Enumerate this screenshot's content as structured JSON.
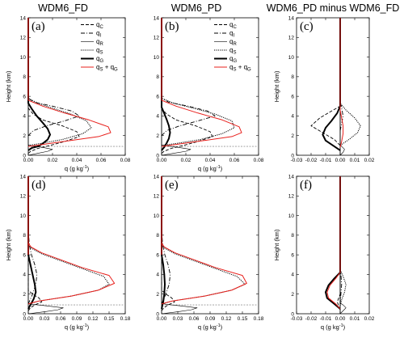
{
  "column_titles": [
    "WDM6_FD",
    "WDM6_PD",
    "WDM6_PD minus WDM6_FD"
  ],
  "legend": [
    {
      "label": "q",
      "sub": "C",
      "color": "#000000",
      "dash": "4,2",
      "width": 0.9
    },
    {
      "label": "q",
      "sub": "I",
      "color": "#000000",
      "dash": "5,2,1,2",
      "width": 0.9
    },
    {
      "label": "q",
      "sub": "R",
      "color": "#000000",
      "dash": "",
      "width": 0.6
    },
    {
      "label": "q",
      "sub": "S",
      "color": "#000000",
      "dash": "1.2,1.2",
      "width": 1.0
    },
    {
      "label": "q",
      "sub": "G",
      "color": "#000000",
      "dash": "",
      "width": 2.0
    },
    {
      "label": "q",
      "sub": "S",
      "plus": " + q",
      "sub2": "G",
      "color": "#e8201c",
      "dash": "",
      "width": 1.0
    }
  ],
  "colors": {
    "black": "#000000",
    "red": "#e8201c",
    "melting_level": "#999999"
  },
  "chart_data": [
    {
      "type": "line",
      "panel": "(a)",
      "title": "WDM6_FD",
      "xlabel": "q (g kg-1)",
      "ylabel": "Height (km)",
      "xlim": [
        0,
        0.08
      ],
      "ylim": [
        0,
        14
      ],
      "xticks": [
        "0.00",
        "0.02",
        "0.04",
        "0.06",
        "0.08"
      ],
      "yticks": [
        "0",
        "2",
        "4",
        "6",
        "8",
        "10",
        "12",
        "14"
      ],
      "melting_level_km": 0.9,
      "series": [
        {
          "key": "qc",
          "x": [
            0,
            0.002,
            0.008,
            0.018,
            0.03,
            0.042,
            0.04,
            0.028,
            0.012,
            0.004,
            0
          ],
          "y": [
            0.2,
            0.4,
            0.7,
            1.0,
            1.4,
            1.9,
            2.4,
            3.0,
            3.6,
            4.2,
            4.8
          ]
        },
        {
          "key": "qi",
          "x": [
            0,
            0.004,
            0.015,
            0.03,
            0.042,
            0.036,
            0.02,
            0.005,
            0
          ],
          "y": [
            2.0,
            2.5,
            3.0,
            3.5,
            4.0,
            4.5,
            5.0,
            5.4,
            5.8
          ]
        },
        {
          "key": "qr",
          "x": [
            0,
            0.008,
            0.016,
            0.02,
            0.012,
            0.003,
            0
          ],
          "y": [
            0.0,
            0.2,
            0.4,
            0.6,
            0.8,
            0.95,
            1.05
          ]
        },
        {
          "key": "qs",
          "x": [
            0,
            0.01,
            0.028,
            0.045,
            0.052,
            0.048,
            0.035,
            0.02,
            0.008,
            0
          ],
          "y": [
            1.0,
            1.2,
            1.6,
            2.2,
            2.8,
            3.5,
            4.2,
            4.8,
            5.3,
            5.8
          ]
        },
        {
          "key": "qg",
          "x": [
            0,
            0.003,
            0.008,
            0.012,
            0.016,
            0.018,
            0.016,
            0.012,
            0.007,
            0.003,
            0
          ],
          "y": [
            0.5,
            0.75,
            0.9,
            1.2,
            1.6,
            2.1,
            2.7,
            3.3,
            4.0,
            4.7,
            5.3
          ]
        },
        {
          "key": "qsg",
          "x": [
            0,
            0.012,
            0.035,
            0.058,
            0.068,
            0.066,
            0.05,
            0.03,
            0.012,
            0
          ],
          "y": [
            0.9,
            1.1,
            1.5,
            1.9,
            2.3,
            2.9,
            3.6,
            4.3,
            5.0,
            5.6
          ]
        }
      ]
    },
    {
      "type": "line",
      "panel": "(b)",
      "title": "WDM6_PD",
      "xlabel": "q (g kg-1)",
      "ylabel": "",
      "xlim": [
        0,
        0.08
      ],
      "ylim": [
        0,
        14
      ],
      "xticks": [
        "0.00",
        "0.02",
        "0.04",
        "0.06",
        "0.08"
      ],
      "yticks": [
        "0",
        "2",
        "4",
        "6",
        "8",
        "10",
        "12",
        "14"
      ],
      "melting_level_km": 0.9,
      "series": [
        {
          "key": "qc",
          "x": [
            0,
            0.002,
            0.008,
            0.018,
            0.03,
            0.042,
            0.04,
            0.028,
            0.012,
            0.004,
            0
          ],
          "y": [
            0.2,
            0.4,
            0.7,
            1.0,
            1.4,
            1.9,
            2.4,
            3.0,
            3.6,
            4.2,
            4.8
          ]
        },
        {
          "key": "qi",
          "x": [
            0,
            0.004,
            0.015,
            0.03,
            0.044,
            0.038,
            0.022,
            0.006,
            0
          ],
          "y": [
            2.0,
            2.5,
            3.0,
            3.5,
            4.0,
            4.5,
            5.0,
            5.4,
            5.8
          ]
        },
        {
          "key": "qr",
          "x": [
            0,
            0.01,
            0.02,
            0.024,
            0.014,
            0.004,
            0
          ],
          "y": [
            0.0,
            0.2,
            0.4,
            0.6,
            0.8,
            0.95,
            1.05
          ]
        },
        {
          "key": "qs",
          "x": [
            0,
            0.012,
            0.032,
            0.05,
            0.06,
            0.058,
            0.044,
            0.026,
            0.01,
            0
          ],
          "y": [
            1.0,
            1.2,
            1.6,
            2.2,
            2.8,
            3.5,
            4.2,
            4.8,
            5.3,
            5.8
          ]
        },
        {
          "key": "qg",
          "x": [
            0,
            0.002,
            0.004,
            0.006,
            0.007,
            0.006,
            0.004,
            0.002,
            0
          ],
          "y": [
            0.5,
            0.8,
            1.2,
            1.7,
            2.3,
            3.0,
            3.7,
            4.3,
            4.9
          ]
        },
        {
          "key": "qsg",
          "x": [
            0,
            0.012,
            0.035,
            0.058,
            0.066,
            0.064,
            0.05,
            0.03,
            0.012,
            0
          ],
          "y": [
            0.9,
            1.1,
            1.5,
            1.9,
            2.3,
            2.9,
            3.6,
            4.3,
            5.0,
            5.6
          ]
        }
      ]
    },
    {
      "type": "line",
      "panel": "(c)",
      "title": "WDM6_PD minus WDM6_FD",
      "xlabel": "",
      "ylabel": "Height (km)",
      "xlim": [
        -0.03,
        0.02
      ],
      "ylim": [
        0,
        14
      ],
      "xticks": [
        "-0.03",
        "-0.02",
        "-0.01",
        "0.00",
        "0.01",
        "0.02"
      ],
      "yticks": [
        "0",
        "2",
        "4",
        "6",
        "8",
        "10",
        "12",
        "14"
      ],
      "zero_line": true,
      "series": [
        {
          "key": "qc",
          "x": [
            0,
            -0.004,
            -0.012,
            -0.02,
            -0.014,
            -0.006,
            0
          ],
          "y": [
            1.0,
            1.6,
            2.3,
            3.0,
            3.8,
            4.5,
            5.0
          ]
        },
        {
          "key": "qi",
          "x": [
            0,
            0.001,
            0.002,
            0.001,
            0
          ],
          "y": [
            2.5,
            3.2,
            4.0,
            4.8,
            5.5
          ]
        },
        {
          "key": "qr",
          "x": [
            0,
            0.002,
            0.003,
            0.001,
            0
          ],
          "y": [
            0.0,
            0.3,
            0.6,
            0.9,
            1.1
          ]
        },
        {
          "key": "qs",
          "x": [
            0,
            0.006,
            0.012,
            0.014,
            0.01,
            0.004,
            0
          ],
          "y": [
            1.0,
            1.6,
            2.3,
            3.0,
            3.8,
            4.6,
            5.3
          ]
        },
        {
          "key": "qg",
          "x": [
            0,
            -0.004,
            -0.01,
            -0.012,
            -0.01,
            -0.006,
            -0.002,
            0
          ],
          "y": [
            0.5,
            0.9,
            1.5,
            2.1,
            2.8,
            3.5,
            4.3,
            5.0
          ]
        },
        {
          "key": "qsg",
          "x": [
            0,
            0.001,
            0.002,
            0.002,
            0.001,
            0
          ],
          "y": [
            0.8,
            1.4,
            2.2,
            3.0,
            3.8,
            4.6
          ]
        }
      ]
    },
    {
      "type": "line",
      "panel": "(d)",
      "title": "",
      "xlabel": "q (g kg-1)",
      "ylabel": "Height (km)",
      "xlim": [
        0,
        0.18
      ],
      "ylim": [
        0,
        14
      ],
      "xticks": [
        "0.00",
        "0.03",
        "0.06",
        "0.09",
        "0.12",
        "0.15",
        "0.18"
      ],
      "yticks": [
        "0",
        "2",
        "4",
        "6",
        "8",
        "10",
        "12",
        "14"
      ],
      "melting_level_km": 0.9,
      "series": [
        {
          "key": "qc",
          "x": [
            0,
            0.004,
            0.012,
            0.025,
            0.02,
            0.008,
            0
          ],
          "y": [
            0.3,
            0.6,
            0.9,
            1.2,
            1.6,
            2.0,
            2.4
          ]
        },
        {
          "key": "qi",
          "x": [
            0,
            0.008,
            0.014,
            0.016,
            0.012,
            0.006,
            0.002,
            0
          ],
          "y": [
            1.0,
            2.0,
            3.0,
            4.0,
            5.0,
            6.0,
            7.0,
            8.5
          ]
        },
        {
          "key": "qr",
          "x": [
            0,
            0.03,
            0.055,
            0.065,
            0.035,
            0.01,
            0
          ],
          "y": [
            0.0,
            0.2,
            0.4,
            0.6,
            0.8,
            0.95,
            1.05
          ]
        },
        {
          "key": "qs",
          "x": [
            0,
            0.02,
            0.08,
            0.13,
            0.15,
            0.14,
            0.1,
            0.06,
            0.025,
            0.005,
            0
          ],
          "y": [
            1.0,
            1.3,
            1.8,
            2.4,
            3.0,
            3.8,
            4.6,
            5.4,
            6.1,
            6.7,
            7.0
          ]
        },
        {
          "key": "qg",
          "x": [
            0,
            0.005,
            0.01,
            0.014,
            0.012,
            0.008,
            0.004,
            0
          ],
          "y": [
            0.5,
            1.0,
            1.5,
            2.2,
            3.0,
            4.0,
            5.0,
            6.0
          ]
        },
        {
          "key": "qsg",
          "x": [
            0,
            0.02,
            0.08,
            0.13,
            0.16,
            0.15,
            0.1,
            0.06,
            0.025,
            0.005,
            0
          ],
          "y": [
            1.0,
            1.3,
            1.8,
            2.4,
            3.1,
            3.9,
            4.7,
            5.5,
            6.2,
            6.8,
            7.2
          ]
        }
      ]
    },
    {
      "type": "line",
      "panel": "(e)",
      "title": "",
      "xlabel": "q (g kg-1)",
      "ylabel": "",
      "xlim": [
        0,
        0.18
      ],
      "ylim": [
        0,
        14
      ],
      "xticks": [
        "0.00",
        "0.03",
        "0.06",
        "0.09",
        "0.12",
        "0.15",
        "0.18"
      ],
      "yticks": [
        "0",
        "2",
        "4",
        "6",
        "8",
        "10",
        "12",
        "14"
      ],
      "melting_level_km": 0.9,
      "series": [
        {
          "key": "qc",
          "x": [
            0,
            0.004,
            0.012,
            0.024,
            0.019,
            0.008,
            0
          ],
          "y": [
            0.3,
            0.6,
            0.9,
            1.2,
            1.6,
            2.0,
            2.4
          ]
        },
        {
          "key": "qi",
          "x": [
            0,
            0.008,
            0.014,
            0.016,
            0.012,
            0.006,
            0.002,
            0
          ],
          "y": [
            1.0,
            2.0,
            3.0,
            4.0,
            5.0,
            6.0,
            7.0,
            8.5
          ]
        },
        {
          "key": "qr",
          "x": [
            0,
            0.03,
            0.055,
            0.066,
            0.036,
            0.01,
            0
          ],
          "y": [
            0.0,
            0.2,
            0.4,
            0.6,
            0.8,
            0.95,
            1.05
          ]
        },
        {
          "key": "qs",
          "x": [
            0,
            0.02,
            0.08,
            0.13,
            0.155,
            0.14,
            0.1,
            0.06,
            0.025,
            0.005,
            0
          ],
          "y": [
            1.0,
            1.3,
            1.8,
            2.4,
            3.0,
            3.8,
            4.6,
            5.4,
            6.1,
            6.7,
            7.0
          ]
        },
        {
          "key": "qg",
          "x": [
            0,
            0.003,
            0.005,
            0.006,
            0.005,
            0.003,
            0
          ],
          "y": [
            0.5,
            1.2,
            2.0,
            3.0,
            4.0,
            5.0,
            6.0
          ]
        },
        {
          "key": "qsg",
          "x": [
            0,
            0.02,
            0.08,
            0.13,
            0.158,
            0.15,
            0.1,
            0.06,
            0.025,
            0.005,
            0
          ],
          "y": [
            1.0,
            1.3,
            1.8,
            2.4,
            3.1,
            3.9,
            4.7,
            5.5,
            6.2,
            6.8,
            7.2
          ]
        }
      ]
    },
    {
      "type": "line",
      "panel": "(f)",
      "title": "",
      "xlabel": "q (g kg-1)",
      "ylabel": "Height (km)",
      "xlim": [
        -0.03,
        0.02
      ],
      "ylim": [
        0,
        14
      ],
      "xticks": [
        "-0.03",
        "-0.02",
        "-0.01",
        "0.00",
        "0.01",
        "0.02"
      ],
      "yticks": [
        "0",
        "2",
        "4",
        "6",
        "8",
        "10",
        "12",
        "14"
      ],
      "zero_line": true,
      "series": [
        {
          "key": "qc",
          "x": [
            0,
            -0.001,
            -0.002,
            -0.001,
            0
          ],
          "y": [
            0.4,
            0.8,
            1.2,
            1.6,
            2.0
          ]
        },
        {
          "key": "qi",
          "x": [
            0,
            0.0005,
            0.001,
            0.0005,
            0
          ],
          "y": [
            1.0,
            2.0,
            3.0,
            4.0,
            5.0
          ]
        },
        {
          "key": "qr",
          "x": [
            0,
            0.002,
            0.004,
            0.002,
            0
          ],
          "y": [
            0.0,
            0.3,
            0.6,
            0.9,
            1.1
          ]
        },
        {
          "key": "qs",
          "x": [
            0,
            0.001,
            0.003,
            0.004,
            0.002,
            0
          ],
          "y": [
            0.8,
            1.4,
            2.2,
            3.0,
            3.8,
            4.5
          ]
        },
        {
          "key": "qg",
          "x": [
            0,
            -0.004,
            -0.009,
            -0.01,
            -0.008,
            -0.004,
            0
          ],
          "y": [
            0.5,
            1.0,
            1.6,
            2.2,
            2.9,
            3.6,
            4.2
          ]
        },
        {
          "key": "qsg",
          "x": [
            0,
            -0.003,
            -0.008,
            -0.009,
            -0.007,
            -0.003,
            0
          ],
          "y": [
            0.5,
            1.0,
            1.6,
            2.2,
            2.9,
            3.6,
            4.2
          ]
        }
      ]
    }
  ]
}
